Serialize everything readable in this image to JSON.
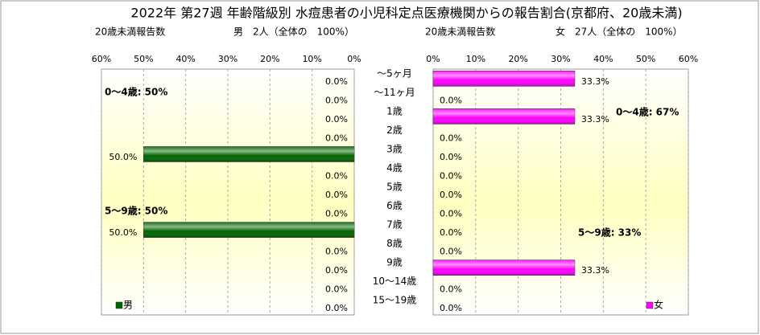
{
  "title": "2022年 第27週 年齢階級別 水痘患者の小児科定点医療機関からの報告割合(京都府、20歳未満)",
  "chart_data": [
    {
      "type": "bar",
      "orientation": "horizontal",
      "count_label": "20歳未満報告数",
      "summary": "男　2人（全体の　100%）",
      "categories": [
        "～5ヶ月",
        "～11ヶ月",
        "1歳",
        "2歳",
        "3歳",
        "4歳",
        "5歳",
        "6歳",
        "7歳",
        "8歳",
        "9歳",
        "10～14歳",
        "15～19歳"
      ],
      "series": [
        {
          "name": "男",
          "color": "#006400",
          "values": [
            0,
            0,
            0,
            0,
            50,
            0,
            0,
            0,
            50,
            0,
            0,
            0,
            0
          ],
          "value_labels": [
            "0.0%",
            "0.0%",
            "0.0%",
            "0.0%",
            "50.0%",
            "0.0%",
            "0.0%",
            "0.0%",
            "50.0%",
            "0.0%",
            "0.0%",
            "0.0%",
            "0.0%"
          ]
        }
      ],
      "xlim": [
        0,
        60
      ],
      "reversed": true,
      "grid": true,
      "xticks": [
        {
          "value": 0,
          "label": "0%"
        },
        {
          "value": 10,
          "label": "10%"
        },
        {
          "value": 20,
          "label": "20%"
        },
        {
          "value": 30,
          "label": "30%"
        },
        {
          "value": 40,
          "label": "40%"
        },
        {
          "value": 50,
          "label": "50%"
        },
        {
          "value": 60,
          "label": "60%"
        }
      ],
      "annotations": [
        "0～4歳: 50%",
        "5～9歳: 50%"
      ],
      "legend": "lower left"
    },
    {
      "type": "bar",
      "orientation": "horizontal",
      "count_label": "20歳未満報告数",
      "summary": "女　27人（全体の　100%）",
      "series": [
        {
          "name": "女",
          "color": "#ff00ff",
          "values": [
            33.3,
            0,
            33.3,
            0,
            0,
            0,
            0,
            0,
            0,
            0,
            33.3,
            0,
            0
          ],
          "value_labels": [
            "33.3%",
            "0.0%",
            "33.3%",
            "0.0%",
            "0.0%",
            "0.0%",
            "0.0%",
            "0.0%",
            "0.0%",
            "0.0%",
            "33.3%",
            "0.0%",
            "0.0%"
          ]
        }
      ],
      "xlim": [
        0,
        60
      ],
      "reversed": false,
      "grid": true,
      "xticks": [
        {
          "value": 0,
          "label": "0%"
        },
        {
          "value": 10,
          "label": "10%"
        },
        {
          "value": 20,
          "label": "20%"
        },
        {
          "value": 30,
          "label": "30%"
        },
        {
          "value": 40,
          "label": "40%"
        },
        {
          "value": 50,
          "label": "50%"
        },
        {
          "value": 60,
          "label": "60%"
        }
      ],
      "annotations": [
        "0～4歳: 67%",
        "5～9歳: 33%"
      ],
      "legend": "lower right"
    }
  ]
}
